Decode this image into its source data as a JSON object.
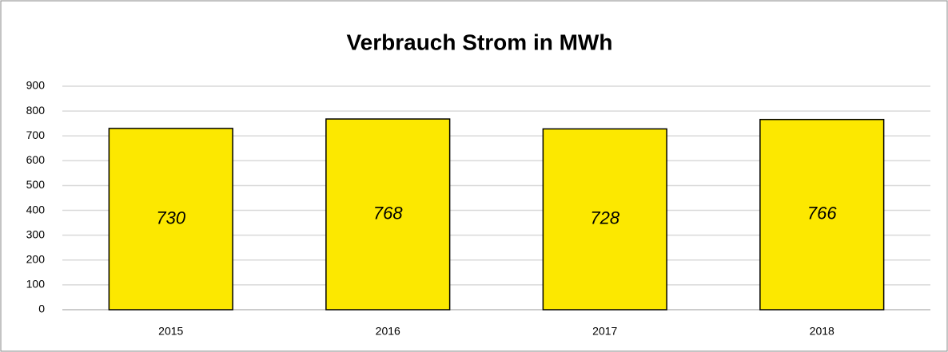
{
  "chart_data": {
    "type": "bar",
    "title": "Verbrauch Strom in MWh",
    "categories": [
      "2015",
      "2016",
      "2017",
      "2018"
    ],
    "values": [
      730,
      768,
      728,
      766
    ],
    "color": "#fce800",
    "ylim": [
      0,
      900
    ],
    "yticks": [
      0,
      100,
      200,
      300,
      400,
      500,
      600,
      700,
      800,
      900
    ],
    "grid": true
  }
}
